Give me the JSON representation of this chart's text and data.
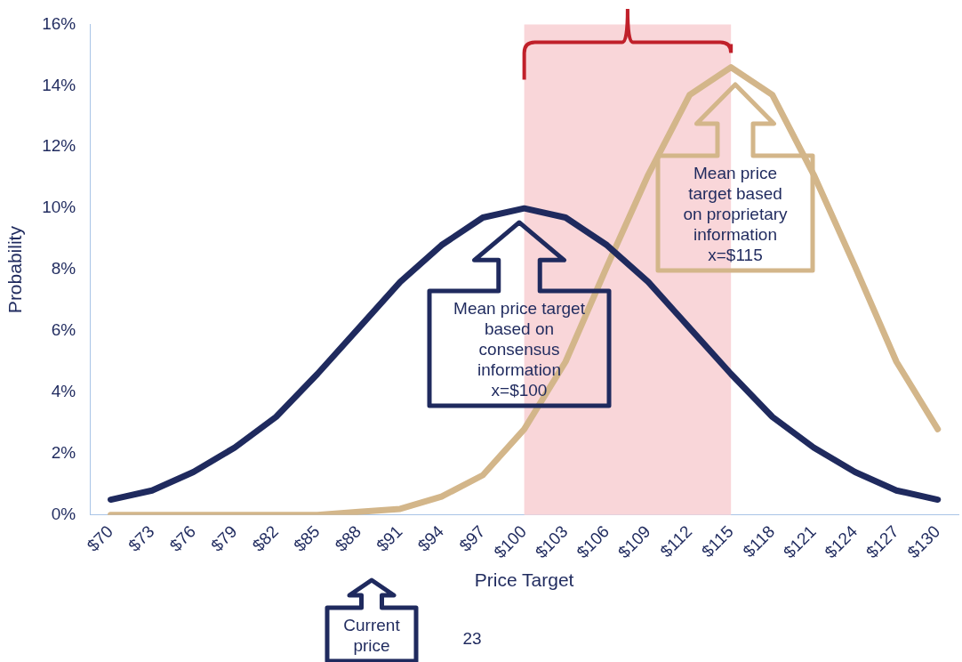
{
  "chart_data": {
    "type": "line",
    "xlabel": "Price Target",
    "ylabel": "Probability",
    "categories": [
      "$70",
      "$73",
      "$76",
      "$79",
      "$82",
      "$85",
      "$88",
      "$91",
      "$94",
      "$97",
      "$100",
      "$103",
      "$106",
      "$109",
      "$112",
      "$115",
      "$118",
      "$121",
      "$124",
      "$127",
      "$130"
    ],
    "series": [
      {
        "color": "#1f2a5e",
        "values": [
          0.5,
          0.8,
          1.4,
          2.2,
          3.2,
          4.6,
          6.1,
          7.6,
          8.8,
          9.7,
          10.0,
          9.7,
          8.8,
          7.6,
          6.1,
          4.6,
          3.2,
          2.2,
          1.4,
          0.8,
          0.5
        ]
      },
      {
        "color": "#d3b68a",
        "values": [
          0,
          0,
          0,
          0,
          0,
          0,
          0.1,
          0.2,
          0.6,
          1.3,
          2.8,
          5.0,
          8.1,
          11.1,
          13.7,
          14.6,
          13.7,
          11.1,
          8.1,
          5.0,
          2.8
        ]
      }
    ],
    "ylim": [
      0,
      16
    ],
    "yticks": [
      {
        "value": 0,
        "label": "0%"
      },
      {
        "value": 2,
        "label": "2%"
      },
      {
        "value": 4,
        "label": "4%"
      },
      {
        "value": 6,
        "label": "6%"
      },
      {
        "value": 8,
        "label": "8%"
      },
      {
        "value": 10,
        "label": "10%"
      },
      {
        "value": 12,
        "label": "12%"
      },
      {
        "value": 14,
        "label": "14%"
      },
      {
        "value": 16,
        "label": "16%"
      }
    ],
    "bands": [
      {
        "axis": "x",
        "from": "$100",
        "to": "$115",
        "color": "#f9d6d9"
      }
    ],
    "annotations": [
      "Mean price target\nbased on\nconsensus\ninformation\nx=$100",
      "Mean price\ntarget based\non proprietary\ninformation\nx=$115",
      "Current\nprice",
      "23"
    ],
    "grid": false,
    "legend": false,
    "marker": "none",
    "line_style": "solid"
  }
}
